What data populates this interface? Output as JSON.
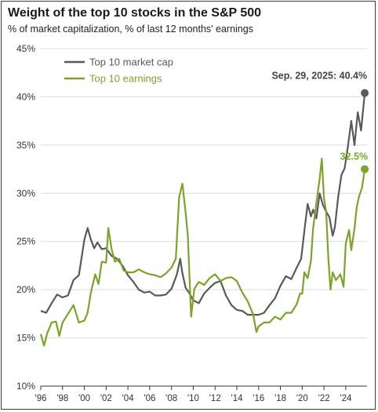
{
  "colors": {
    "market_cap": "#595959",
    "earnings": "#7ba428",
    "grid": "#dcdcdc",
    "axis": "#333333"
  },
  "chart_data": {
    "type": "line",
    "title": "Weight of the top 10 stocks in the S&P 500",
    "subtitle": "% of market capitalization, % of last 12 months' earnings",
    "ylim": [
      10,
      45
    ],
    "xlim": [
      1996.0,
      2025.95
    ],
    "y_ticks": [
      10,
      15,
      20,
      25,
      30,
      35,
      40,
      45
    ],
    "y_tick_labels": [
      "10%",
      "15%",
      "20%",
      "25%",
      "30%",
      "35%",
      "40%",
      "45%"
    ],
    "x_ticks": [
      1996,
      1998,
      2000,
      2002,
      2004,
      2006,
      2008,
      2010,
      2012,
      2014,
      2016,
      2018,
      2020,
      2022,
      2024
    ],
    "x_tick_labels": [
      "'96",
      "'98",
      "'00",
      "'02",
      "'04",
      "'06",
      "'08",
      "'10",
      "'12",
      "'14",
      "'16",
      "'18",
      "'20",
      "'22",
      "'24"
    ],
    "grid": "horizontal",
    "legend": "top-left",
    "series": [
      {
        "name": "Top 10 market cap",
        "color": "#595959",
        "points": [
          [
            1996.0,
            17.8
          ],
          [
            1996.5,
            17.6
          ],
          [
            1997.0,
            18.6
          ],
          [
            1997.5,
            19.5
          ],
          [
            1998.0,
            19.2
          ],
          [
            1998.5,
            19.4
          ],
          [
            1999.0,
            21.0
          ],
          [
            1999.5,
            21.5
          ],
          [
            2000.0,
            25.2
          ],
          [
            2000.3,
            26.4
          ],
          [
            2000.6,
            25.2
          ],
          [
            2000.9,
            24.3
          ],
          [
            2001.2,
            24.9
          ],
          [
            2001.6,
            24.2
          ],
          [
            2002.0,
            24.3
          ],
          [
            2002.5,
            23.5
          ],
          [
            2003.0,
            23.2
          ],
          [
            2003.5,
            22.5
          ],
          [
            2004.0,
            21.5
          ],
          [
            2004.5,
            20.8
          ],
          [
            2005.0,
            20.0
          ],
          [
            2005.5,
            19.7
          ],
          [
            2006.0,
            19.8
          ],
          [
            2006.5,
            19.4
          ],
          [
            2007.0,
            19.4
          ],
          [
            2007.5,
            19.5
          ],
          [
            2008.0,
            20.1
          ],
          [
            2008.5,
            21.6
          ],
          [
            2008.8,
            23.2
          ],
          [
            2009.0,
            21.7
          ],
          [
            2009.3,
            20.2
          ],
          [
            2009.6,
            19.7
          ],
          [
            2010.0,
            18.9
          ],
          [
            2010.5,
            18.6
          ],
          [
            2011.0,
            19.6
          ],
          [
            2011.5,
            20.2
          ],
          [
            2012.0,
            20.7
          ],
          [
            2012.5,
            20.9
          ],
          [
            2013.0,
            19.4
          ],
          [
            2013.5,
            18.4
          ],
          [
            2014.0,
            17.9
          ],
          [
            2014.5,
            17.8
          ],
          [
            2015.0,
            17.4
          ],
          [
            2015.5,
            17.4
          ],
          [
            2016.0,
            17.4
          ],
          [
            2016.5,
            17.6
          ],
          [
            2017.0,
            18.4
          ],
          [
            2017.5,
            19.1
          ],
          [
            2018.0,
            20.4
          ],
          [
            2018.5,
            21.4
          ],
          [
            2019.0,
            21.1
          ],
          [
            2019.5,
            22.3
          ],
          [
            2019.9,
            23.2
          ],
          [
            2020.2,
            26.1
          ],
          [
            2020.5,
            28.9
          ],
          [
            2020.8,
            27.6
          ],
          [
            2021.0,
            28.3
          ],
          [
            2021.3,
            27.4
          ],
          [
            2021.6,
            30.0
          ],
          [
            2021.9,
            28.8
          ],
          [
            2022.2,
            28.1
          ],
          [
            2022.5,
            27.5
          ],
          [
            2022.8,
            25.6
          ],
          [
            2023.0,
            26.5
          ],
          [
            2023.3,
            29.6
          ],
          [
            2023.6,
            31.9
          ],
          [
            2023.9,
            32.6
          ],
          [
            2024.2,
            34.9
          ],
          [
            2024.5,
            37.5
          ],
          [
            2024.8,
            35.0
          ],
          [
            2025.1,
            38.4
          ],
          [
            2025.4,
            36.5
          ],
          [
            2025.74,
            40.4
          ]
        ]
      },
      {
        "name": "Top 10 earnings",
        "color": "#7ba428",
        "points": [
          [
            1996.0,
            15.4
          ],
          [
            1996.3,
            14.2
          ],
          [
            1996.6,
            15.5
          ],
          [
            1997.0,
            16.6
          ],
          [
            1997.4,
            16.7
          ],
          [
            1997.7,
            15.2
          ],
          [
            1998.0,
            16.6
          ],
          [
            1998.5,
            17.5
          ],
          [
            1999.0,
            18.4
          ],
          [
            1999.5,
            16.6
          ],
          [
            2000.0,
            16.8
          ],
          [
            2000.3,
            17.6
          ],
          [
            2000.6,
            19.7
          ],
          [
            2001.0,
            21.6
          ],
          [
            2001.3,
            20.6
          ],
          [
            2001.6,
            22.9
          ],
          [
            2002.0,
            22.8
          ],
          [
            2002.2,
            26.4
          ],
          [
            2002.5,
            24.2
          ],
          [
            2002.8,
            22.9
          ],
          [
            2003.2,
            23.2
          ],
          [
            2003.6,
            22.0
          ],
          [
            2004.0,
            21.8
          ],
          [
            2004.5,
            21.8
          ],
          [
            2005.0,
            22.1
          ],
          [
            2005.5,
            21.8
          ],
          [
            2006.0,
            21.6
          ],
          [
            2006.5,
            21.5
          ],
          [
            2007.0,
            21.3
          ],
          [
            2007.5,
            21.7
          ],
          [
            2008.0,
            22.3
          ],
          [
            2008.4,
            23.2
          ],
          [
            2008.7,
            29.6
          ],
          [
            2009.0,
            31.0
          ],
          [
            2009.3,
            28.0
          ],
          [
            2009.5,
            25.6
          ],
          [
            2009.8,
            17.2
          ],
          [
            2010.1,
            20.1
          ],
          [
            2010.5,
            20.8
          ],
          [
            2011.0,
            20.5
          ],
          [
            2011.5,
            21.2
          ],
          [
            2012.0,
            21.6
          ],
          [
            2012.5,
            20.9
          ],
          [
            2013.0,
            21.2
          ],
          [
            2013.5,
            21.3
          ],
          [
            2014.0,
            20.9
          ],
          [
            2014.5,
            19.7
          ],
          [
            2015.0,
            18.8
          ],
          [
            2015.5,
            17.4
          ],
          [
            2015.8,
            15.6
          ],
          [
            2016.0,
            16.2
          ],
          [
            2016.5,
            16.6
          ],
          [
            2017.0,
            16.6
          ],
          [
            2017.5,
            17.2
          ],
          [
            2018.0,
            16.9
          ],
          [
            2018.5,
            17.6
          ],
          [
            2019.0,
            17.6
          ],
          [
            2019.5,
            18.5
          ],
          [
            2019.8,
            19.6
          ],
          [
            2020.0,
            19.6
          ],
          [
            2020.2,
            21.8
          ],
          [
            2020.5,
            21.2
          ],
          [
            2020.8,
            23.0
          ],
          [
            2021.0,
            26.3
          ],
          [
            2021.3,
            29.0
          ],
          [
            2021.6,
            31.5
          ],
          [
            2021.8,
            33.6
          ],
          [
            2022.0,
            29.5
          ],
          [
            2022.2,
            28.1
          ],
          [
            2022.4,
            23.2
          ],
          [
            2022.6,
            20.0
          ],
          [
            2022.8,
            21.8
          ],
          [
            2023.1,
            21.0
          ],
          [
            2023.5,
            21.6
          ],
          [
            2023.8,
            20.3
          ],
          [
            2024.0,
            24.8
          ],
          [
            2024.3,
            26.2
          ],
          [
            2024.5,
            24.1
          ],
          [
            2024.8,
            26.3
          ],
          [
            2025.0,
            28.5
          ],
          [
            2025.2,
            29.6
          ],
          [
            2025.5,
            30.6
          ],
          [
            2025.74,
            32.5
          ]
        ]
      }
    ],
    "annotations": [
      {
        "text": "Sep. 29, 2025: 40.4%",
        "x": 2025.74,
        "y": 40.4,
        "series": 0
      },
      {
        "text": "32.5%",
        "x": 2025.74,
        "y": 32.5,
        "series": 1
      }
    ]
  }
}
